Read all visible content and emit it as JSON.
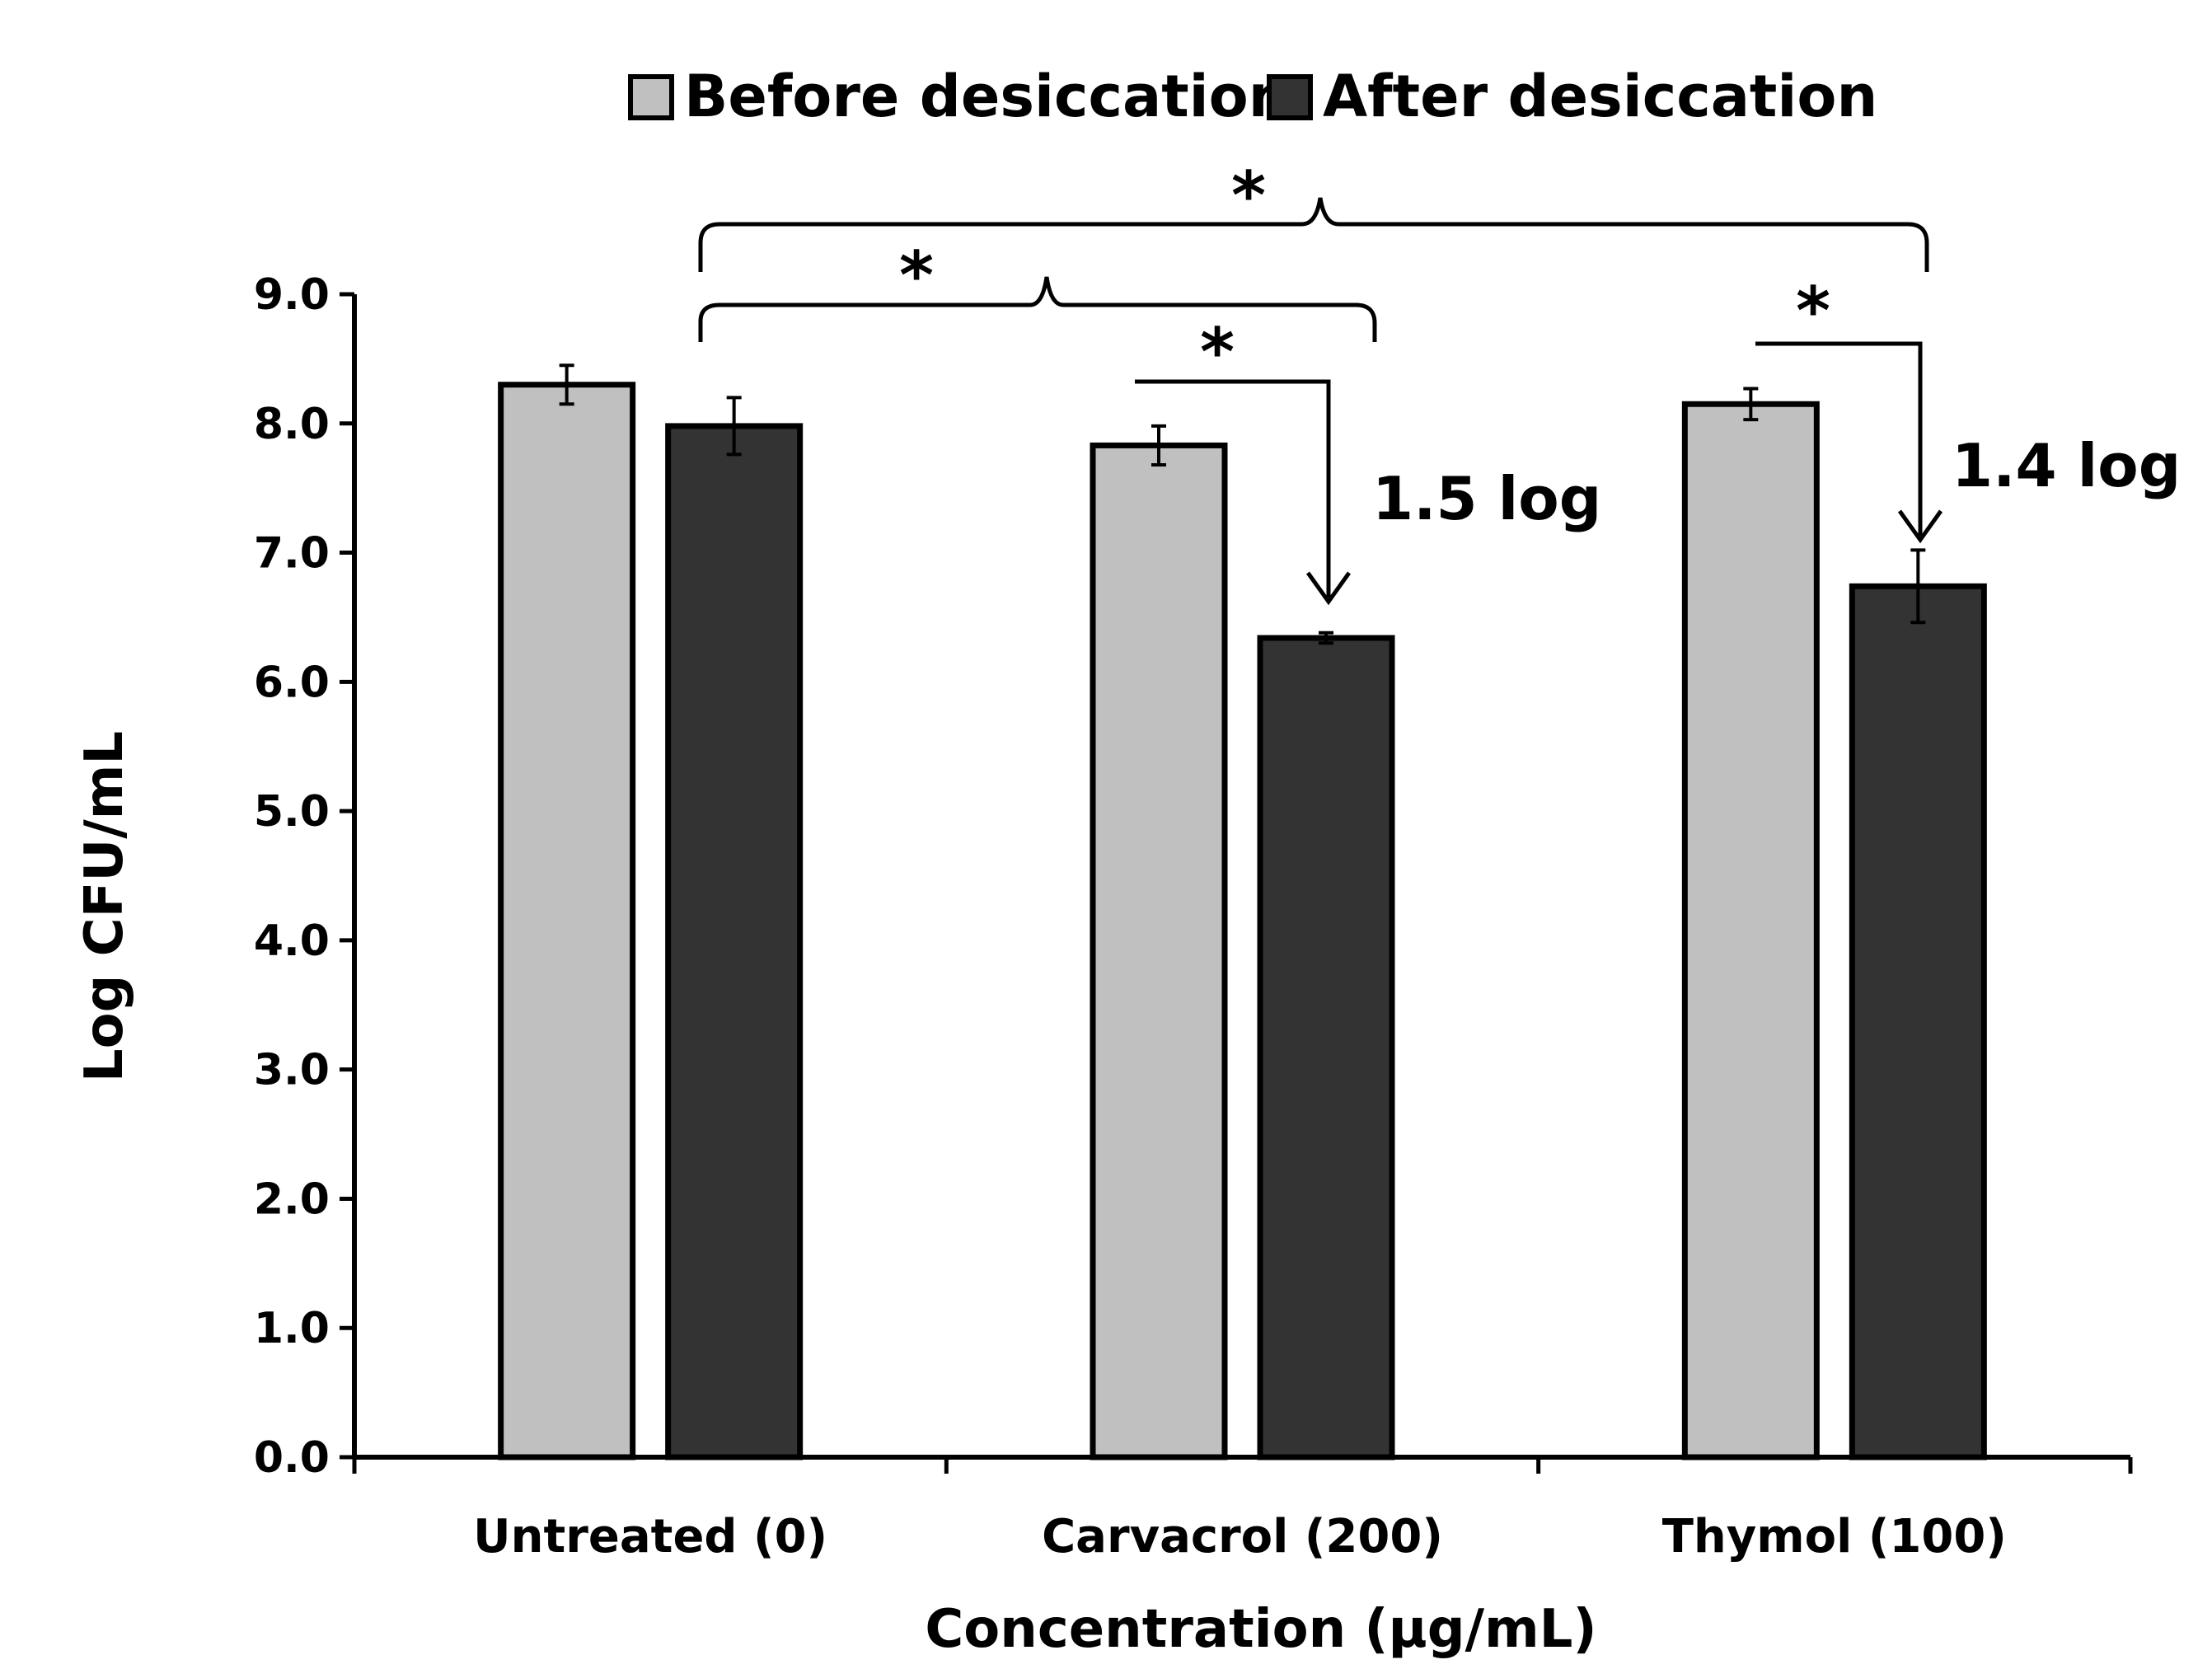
{
  "chart_data": {
    "type": "bar",
    "xlabel": "Concentration (µg/mL)",
    "ylabel": "Log CFU/mL",
    "ylim": [
      0,
      9
    ],
    "yticks": [
      0,
      1,
      2,
      3,
      4,
      5,
      6,
      7,
      8,
      9
    ],
    "ytick_labels": [
      "0.0",
      "1.0",
      "2.0",
      "3.0",
      "4.0",
      "5.0",
      "6.0",
      "7.0",
      "8.0",
      "9.0"
    ],
    "categories": [
      "Untreated (0)",
      "Carvacrol (200)",
      "Thymol (100)"
    ],
    "series": [
      {
        "name": "Before desiccation",
        "color": "#c0c0c0",
        "values": [
          8.3,
          7.83,
          8.15
        ],
        "errors": [
          0.15,
          0.15,
          0.12
        ]
      },
      {
        "name": "After desiccation",
        "color": "#333333",
        "values": [
          7.98,
          6.34,
          6.74
        ],
        "errors": [
          0.22,
          0.04,
          0.28
        ]
      }
    ],
    "legend_position": "top-center",
    "annotations": {
      "reduction_labels": [
        "1.5 log",
        "1.4 log"
      ],
      "significance_marker": "*"
    }
  }
}
